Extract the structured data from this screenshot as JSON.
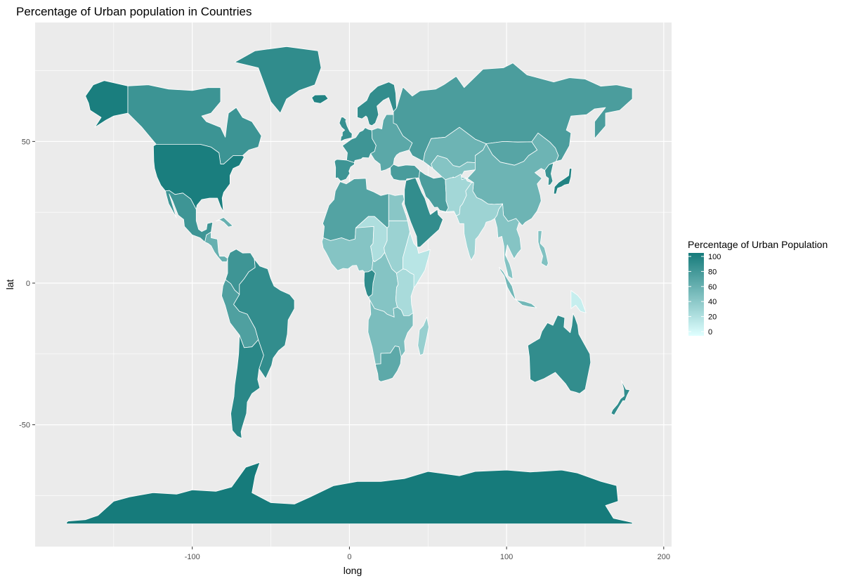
{
  "chart_data": {
    "type": "choropleth",
    "title": "Percentage of Urban population in Countries",
    "xlabel": "long",
    "ylabel": "lat",
    "xlim": [
      -200,
      205
    ],
    "ylim": [
      -93,
      92
    ],
    "x_ticks": [
      -100,
      0,
      100,
      200
    ],
    "x_tick_labels": [
      "-100",
      "0",
      "100",
      "200"
    ],
    "y_ticks": [
      -50,
      0,
      50
    ],
    "y_tick_labels": [
      "-50",
      "0",
      "50"
    ],
    "grid": true,
    "legend": {
      "title": "Percentage of Urban Population",
      "placement": "right",
      "ticks": [
        0,
        20,
        40,
        60,
        80,
        100
      ],
      "tick_labels": [
        "0",
        "20",
        "40",
        "60",
        "80",
        "100"
      ],
      "color_low": "#e0ffff",
      "color_high": "#167b7b"
    },
    "colors": {
      "panel_background": "#ebebeb",
      "gridline": "#ffffff",
      "country_border": "#ffffff"
    },
    "regions": [
      {
        "name": "Alaska",
        "value": 98
      },
      {
        "name": "Canada",
        "value": 81
      },
      {
        "name": "Greenland",
        "value": 87
      },
      {
        "name": "United States",
        "value": 98
      },
      {
        "name": "Mexico",
        "value": 80
      },
      {
        "name": "Central America",
        "value": 60
      },
      {
        "name": "Caribbean",
        "value": 60
      },
      {
        "name": "Colombia / Venezuela",
        "value": 80
      },
      {
        "name": "Brazil",
        "value": 86
      },
      {
        "name": "Peru / Bolivia",
        "value": 72
      },
      {
        "name": "Chile / Argentina",
        "value": 90
      },
      {
        "name": "Iceland",
        "value": 94
      },
      {
        "name": "United Kingdom",
        "value": 83
      },
      {
        "name": "Scandinavia",
        "value": 86
      },
      {
        "name": "Western Europe",
        "value": 80
      },
      {
        "name": "Iberia",
        "value": 80
      },
      {
        "name": "Eastern Europe",
        "value": 66
      },
      {
        "name": "Turkey",
        "value": 75
      },
      {
        "name": "Russia",
        "value": 74
      },
      {
        "name": "Kazakhstan",
        "value": 57
      },
      {
        "name": "Central Asia",
        "value": 45
      },
      {
        "name": "Mongolia",
        "value": 68
      },
      {
        "name": "China",
        "value": 57
      },
      {
        "name": "Korea",
        "value": 82
      },
      {
        "name": "Japan",
        "value": 94
      },
      {
        "name": "Middle East",
        "value": 86
      },
      {
        "name": "Iran",
        "value": 74
      },
      {
        "name": "Afghanistan / Pakistan",
        "value": 30
      },
      {
        "name": "India",
        "value": 33
      },
      {
        "name": "Southeast Asia",
        "value": 45
      },
      {
        "name": "Philippines",
        "value": 47
      },
      {
        "name": "Indonesia",
        "value": 54
      },
      {
        "name": "Papua New Guinea",
        "value": 13
      },
      {
        "name": "North Africa",
        "value": 70
      },
      {
        "name": "Egypt",
        "value": 43
      },
      {
        "name": "West Africa",
        "value": 45
      },
      {
        "name": "Sahel",
        "value": 25
      },
      {
        "name": "Sudan",
        "value": 34
      },
      {
        "name": "Ethiopia / Horn",
        "value": 20
      },
      {
        "name": "Central Africa",
        "value": 45
      },
      {
        "name": "Gabon / Congo",
        "value": 87
      },
      {
        "name": "East Africa",
        "value": 27
      },
      {
        "name": "Southern Africa",
        "value": 50
      },
      {
        "name": "South Africa",
        "value": 65
      },
      {
        "name": "Madagascar",
        "value": 36
      },
      {
        "name": "Australia",
        "value": 86
      },
      {
        "name": "New Zealand",
        "value": 86
      },
      {
        "name": "Antarctica",
        "value": 100
      }
    ]
  }
}
